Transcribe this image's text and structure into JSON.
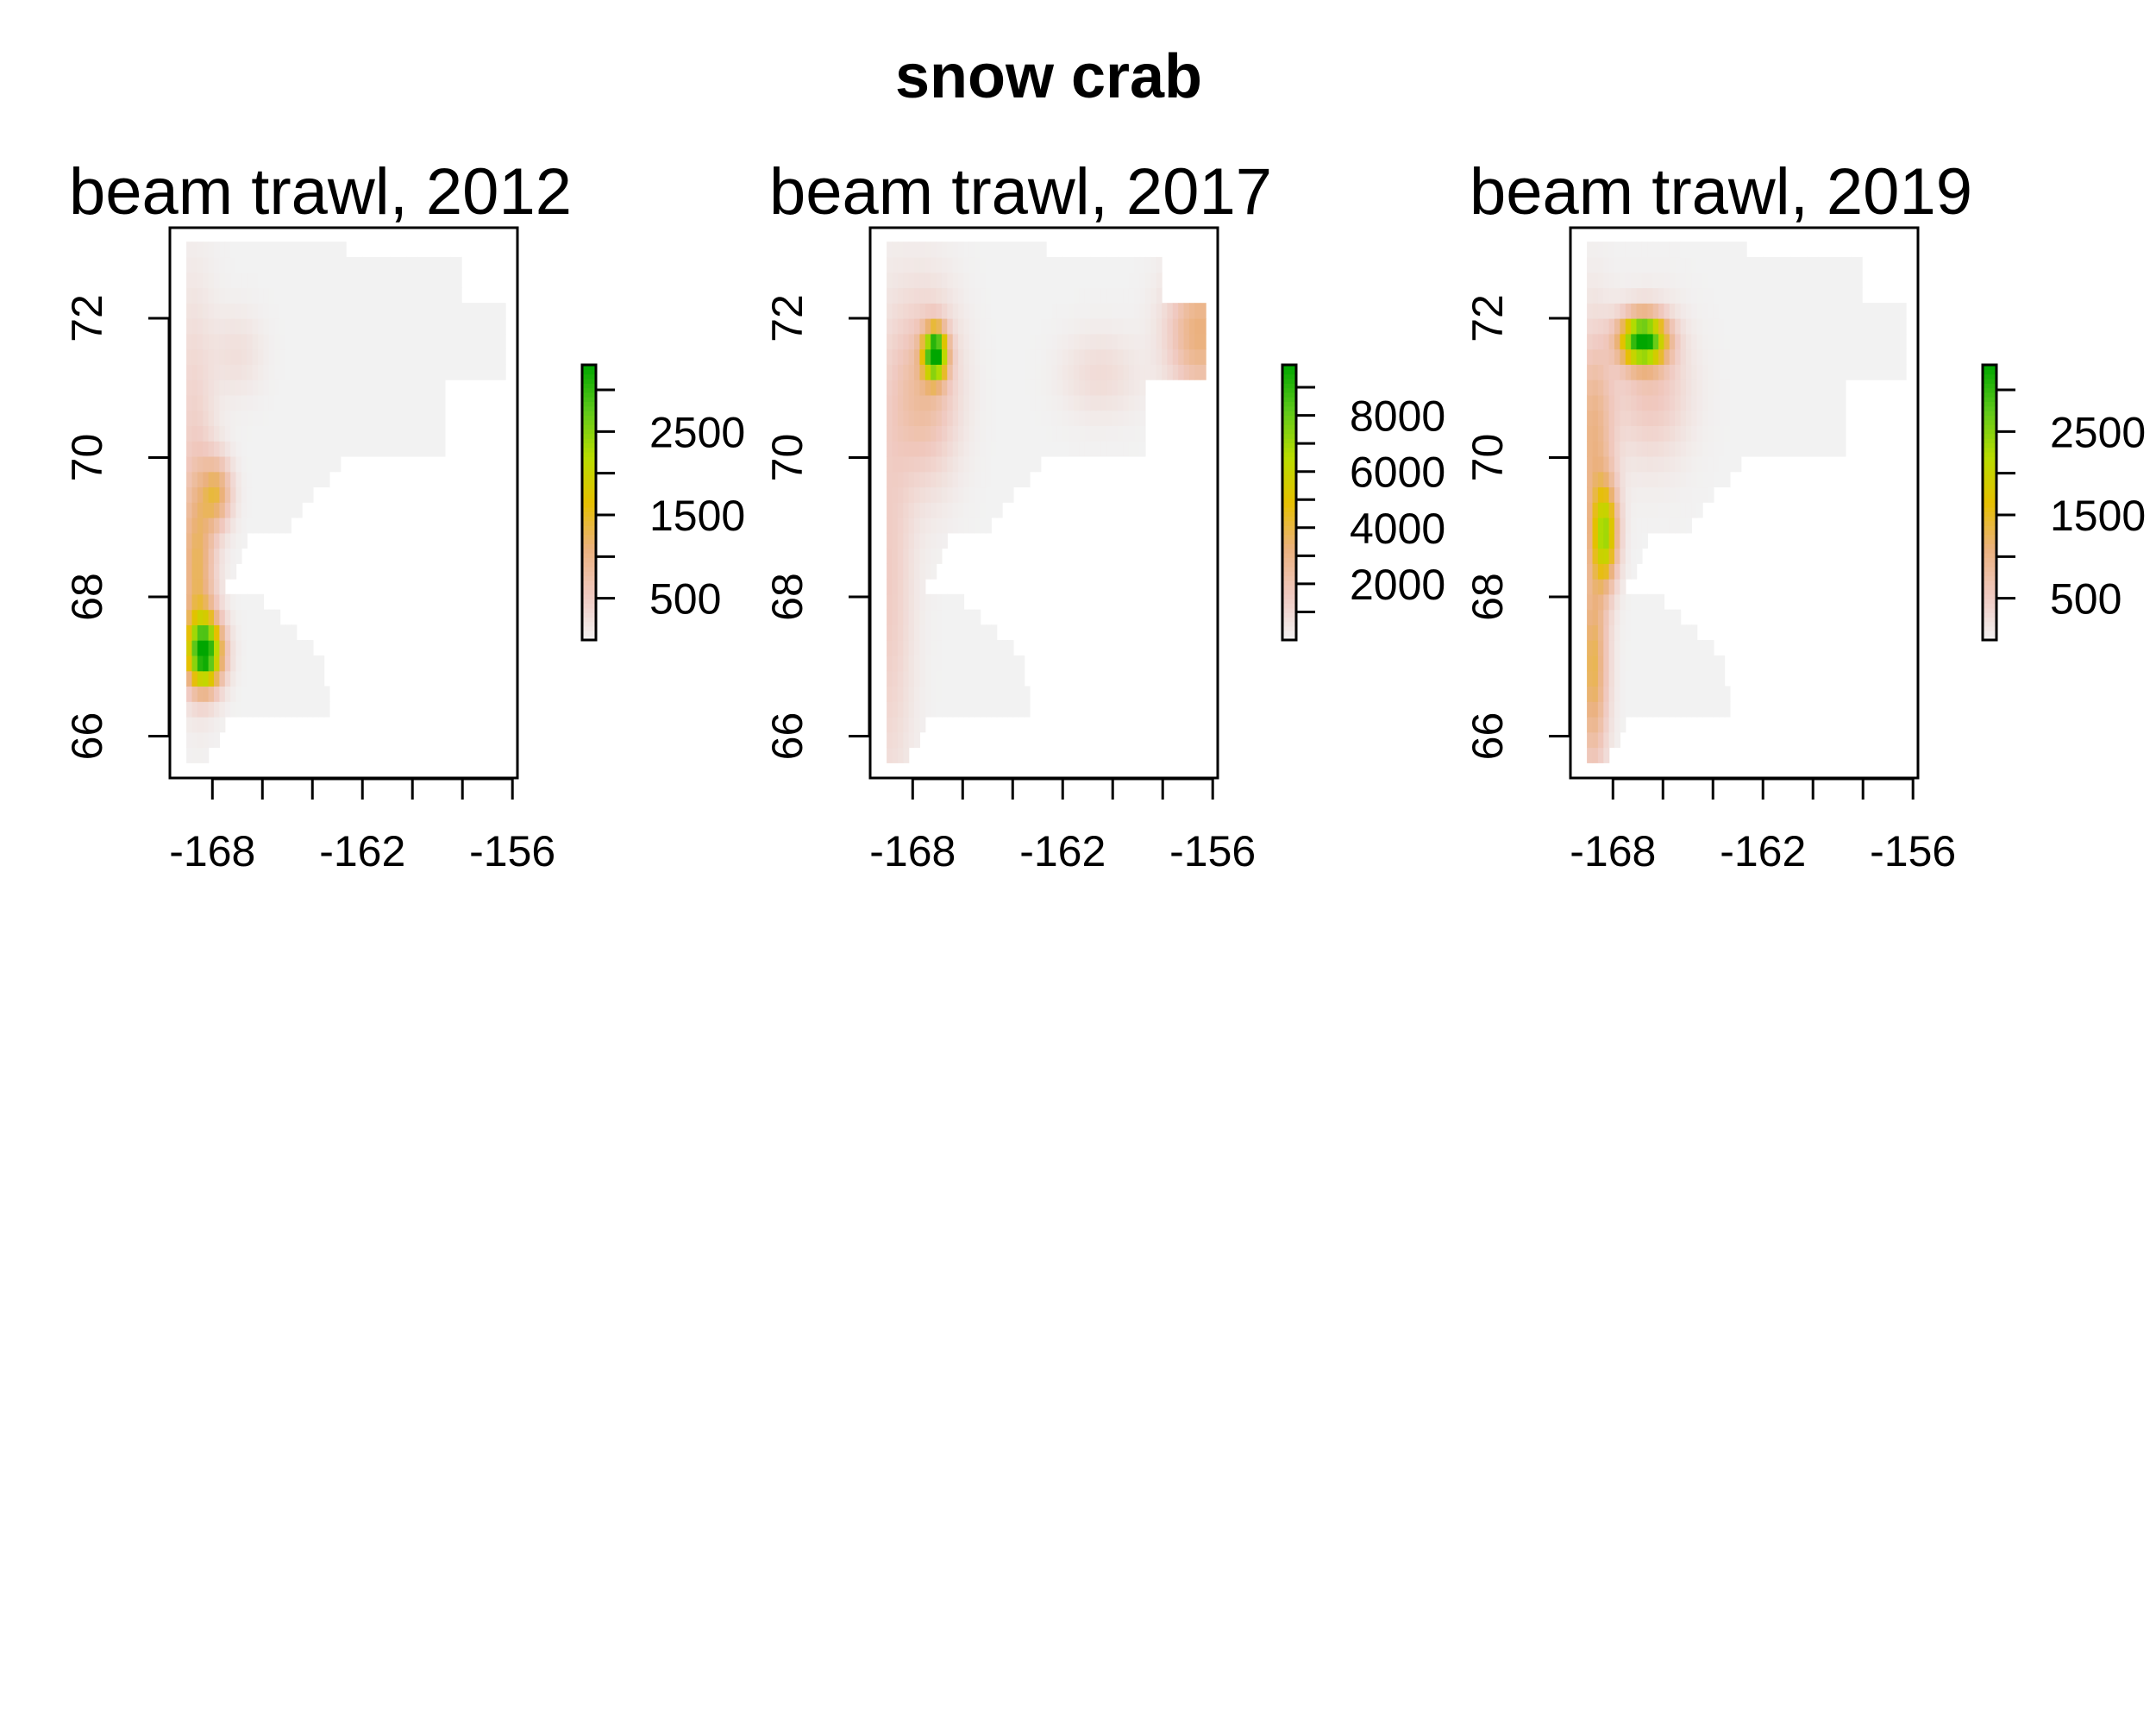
{
  "figure": {
    "title": "snow crab"
  },
  "chart_data": [
    {
      "type": "heatmap",
      "title": "beam trawl, 2012",
      "xlabel": "",
      "ylabel": "",
      "x_ticks": [
        -168,
        -166,
        -164,
        -162,
        -160,
        -158,
        -156
      ],
      "x_tick_labels": [
        "-168",
        "",
        "",
        "-162",
        "",
        "",
        "-156"
      ],
      "y_ticks": [
        66,
        68,
        70,
        72
      ],
      "y_tick_labels": [
        "66",
        "68",
        "70",
        "72"
      ],
      "xlim": [
        -169.7,
        -155.8
      ],
      "ylim": [
        65.4,
        73.3
      ],
      "color_scale": {
        "range": [
          0,
          3300
        ],
        "ticks": [
          0,
          500,
          1000,
          1500,
          2000,
          2500,
          3000
        ],
        "tick_labels": [
          "",
          "500",
          "",
          "1500",
          "",
          "2500",
          ""
        ],
        "colors": [
          "#f2f2f2",
          "#f0c9c0",
          "#ebb17e",
          "#e6c000",
          "#b8dd00",
          "#5fc91a",
          "#00a600"
        ]
      },
      "hotspots": [
        {
          "lon": -168.3,
          "lat": 67.2,
          "value": 3100,
          "rx": 0.7,
          "ry": 0.5
        },
        {
          "lon": -168.6,
          "lat": 68.4,
          "value": 1200,
          "rx": 0.7,
          "ry": 1.4
        },
        {
          "lon": -167.8,
          "lat": 69.5,
          "value": 1100,
          "rx": 0.6,
          "ry": 0.5
        },
        {
          "lon": -168.8,
          "lat": 70.8,
          "value": 350,
          "rx": 0.9,
          "ry": 1.8
        },
        {
          "lon": -167.0,
          "lat": 71.5,
          "value": 250,
          "rx": 1.0,
          "ry": 0.6
        }
      ]
    },
    {
      "type": "heatmap",
      "title": "beam trawl, 2017",
      "xlabel": "",
      "ylabel": "",
      "x_ticks": [
        -168,
        -166,
        -164,
        -162,
        -160,
        -158,
        -156
      ],
      "x_tick_labels": [
        "-168",
        "",
        "",
        "-162",
        "",
        "",
        "-156"
      ],
      "y_ticks": [
        66,
        68,
        70,
        72
      ],
      "y_tick_labels": [
        "66",
        "68",
        "70",
        "72"
      ],
      "xlim": [
        -169.7,
        -155.8
      ],
      "ylim": [
        65.4,
        73.3
      ],
      "color_scale": {
        "range": [
          0,
          9800
        ],
        "ticks": [
          0,
          1000,
          2000,
          3000,
          4000,
          5000,
          6000,
          7000,
          8000,
          9000
        ],
        "tick_labels": [
          "",
          "",
          "2000",
          "",
          "4000",
          "",
          "6000",
          "",
          "8000",
          ""
        ],
        "colors": [
          "#f2f2f2",
          "#f0c9c0",
          "#ebb17e",
          "#e6c000",
          "#b8dd00",
          "#5fc91a",
          "#00a600"
        ]
      },
      "hotspots": [
        {
          "lon": -167.1,
          "lat": 71.5,
          "value": 9500,
          "rx": 0.45,
          "ry": 0.35
        },
        {
          "lon": -167.5,
          "lat": 71.0,
          "value": 2500,
          "rx": 1.3,
          "ry": 1.3
        },
        {
          "lon": -156.5,
          "lat": 71.8,
          "value": 3300,
          "rx": 1.3,
          "ry": 0.9
        },
        {
          "lon": -169.0,
          "lat": 68.2,
          "value": 1500,
          "rx": 1.0,
          "ry": 3.2
        },
        {
          "lon": -160.5,
          "lat": 71.2,
          "value": 900,
          "rx": 1.5,
          "ry": 0.6
        }
      ]
    },
    {
      "type": "heatmap",
      "title": "beam trawl, 2019",
      "xlabel": "",
      "ylabel": "",
      "x_ticks": [
        -168,
        -166,
        -164,
        -162,
        -160,
        -158,
        -156
      ],
      "x_tick_labels": [
        "-168",
        "",
        "",
        "-162",
        "",
        "",
        "-156"
      ],
      "y_ticks": [
        66,
        68,
        70,
        72
      ],
      "y_tick_labels": [
        "66",
        "68",
        "70",
        "72"
      ],
      "xlim": [
        -169.7,
        -155.8
      ],
      "ylim": [
        65.4,
        73.3
      ],
      "color_scale": {
        "range": [
          0,
          3300
        ],
        "ticks": [
          0,
          500,
          1000,
          1500,
          2000,
          2500,
          3000
        ],
        "tick_labels": [
          "",
          "500",
          "",
          "1500",
          "",
          "2500",
          ""
        ],
        "colors": [
          "#f2f2f2",
          "#f0c9c0",
          "#ebb17e",
          "#e6c000",
          "#b8dd00",
          "#5fc91a",
          "#00a600"
        ]
      },
      "hotspots": [
        {
          "lon": -166.8,
          "lat": 71.7,
          "value": 3200,
          "rx": 0.9,
          "ry": 0.35
        },
        {
          "lon": -168.3,
          "lat": 68.9,
          "value": 2000,
          "rx": 0.5,
          "ry": 0.7
        },
        {
          "lon": -168.8,
          "lat": 67.0,
          "value": 1300,
          "rx": 0.6,
          "ry": 1.5
        },
        {
          "lon": -168.8,
          "lat": 70.3,
          "value": 1000,
          "rx": 0.8,
          "ry": 1.5
        },
        {
          "lon": -166.5,
          "lat": 71.0,
          "value": 600,
          "rx": 1.5,
          "ry": 1.0
        }
      ]
    }
  ]
}
